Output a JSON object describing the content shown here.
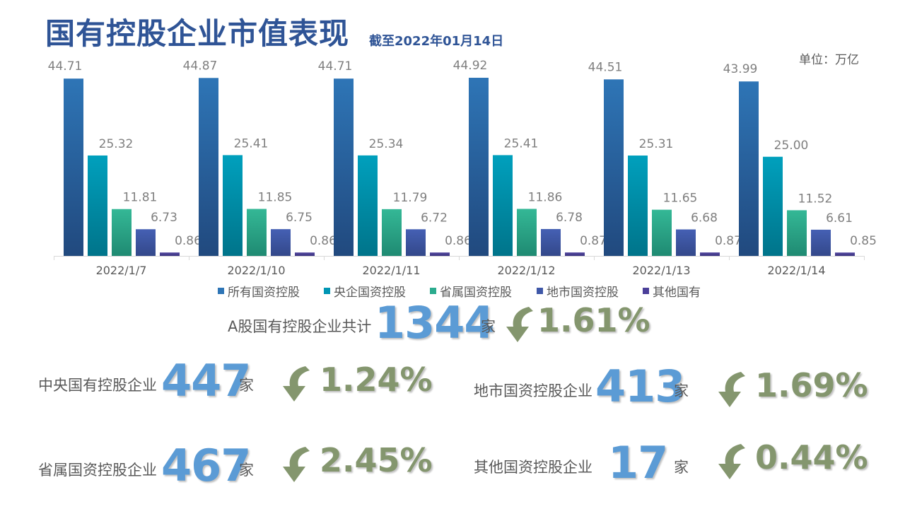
{
  "page": {
    "title": "国有控股企业市值表现",
    "as_of": "截至2022年01月14日",
    "unit": "单位：万亿"
  },
  "chart_data": {
    "type": "bar",
    "categories": [
      "2022/1/7",
      "2022/1/10",
      "2022/1/11",
      "2022/1/12",
      "2022/1/13",
      "2022/1/14"
    ],
    "series": [
      {
        "name": "所有国资控股",
        "values": [
          44.71,
          44.87,
          44.71,
          44.92,
          44.51,
          43.99
        ],
        "labels": [
          "44.71",
          "44.87",
          "44.71",
          "44.92",
          "44.51",
          "43.99"
        ],
        "color": "#2e75b6"
      },
      {
        "name": "央企国资控股",
        "values": [
          25.32,
          25.41,
          25.34,
          25.41,
          25.31,
          25.0
        ],
        "labels": [
          "25.32",
          "25.41",
          "25.34",
          "25.41",
          "25.31",
          "25.00"
        ],
        "color": "#0096b4"
      },
      {
        "name": "省属国资控股",
        "values": [
          11.81,
          11.85,
          11.79,
          11.86,
          11.65,
          11.52
        ],
        "labels": [
          "11.81",
          "11.85",
          "11.79",
          "11.86",
          "11.65",
          "11.52"
        ],
        "color": "#2bab8e"
      },
      {
        "name": "地市国资控股",
        "values": [
          6.73,
          6.75,
          6.72,
          6.78,
          6.68,
          6.61
        ],
        "labels": [
          "6.73",
          "6.75",
          "6.72",
          "6.78",
          "6.68",
          "6.61"
        ],
        "color": "#3f58a8"
      },
      {
        "name": "其他国有",
        "values": [
          0.86,
          0.86,
          0.86,
          0.87,
          0.87,
          0.85
        ],
        "labels": [
          "0.86",
          "0.86",
          "0.86",
          "0.87",
          "0.87",
          "0.85"
        ],
        "color": "#4b3f99"
      }
    ],
    "legend_position": "bottom",
    "grid": false
  },
  "stats": {
    "total": {
      "label": "A股国有控股企业共计",
      "value": "1344",
      "unit": "家",
      "change": "1.61%",
      "direction": "down"
    },
    "central": {
      "label": "中央国有控股企业",
      "value": "447",
      "unit": "家",
      "change": "1.24%",
      "direction": "down"
    },
    "local": {
      "label": "地市国资控股企业",
      "value": "413",
      "unit": "家",
      "change": "1.69%",
      "direction": "down"
    },
    "provincial": {
      "label": "省属国资控股企业",
      "value": "467",
      "unit": "家",
      "change": "2.45%",
      "direction": "down"
    },
    "other": {
      "label": "其他国资控股企业",
      "value": "17",
      "unit": "家",
      "change": "0.44%",
      "direction": "down"
    }
  },
  "colors": {
    "title": "#2f5496",
    "big_number": "#5b9bd5",
    "change": "#84966e"
  },
  "icons": {
    "change_arrow": "curved-down-arrow-icon"
  }
}
